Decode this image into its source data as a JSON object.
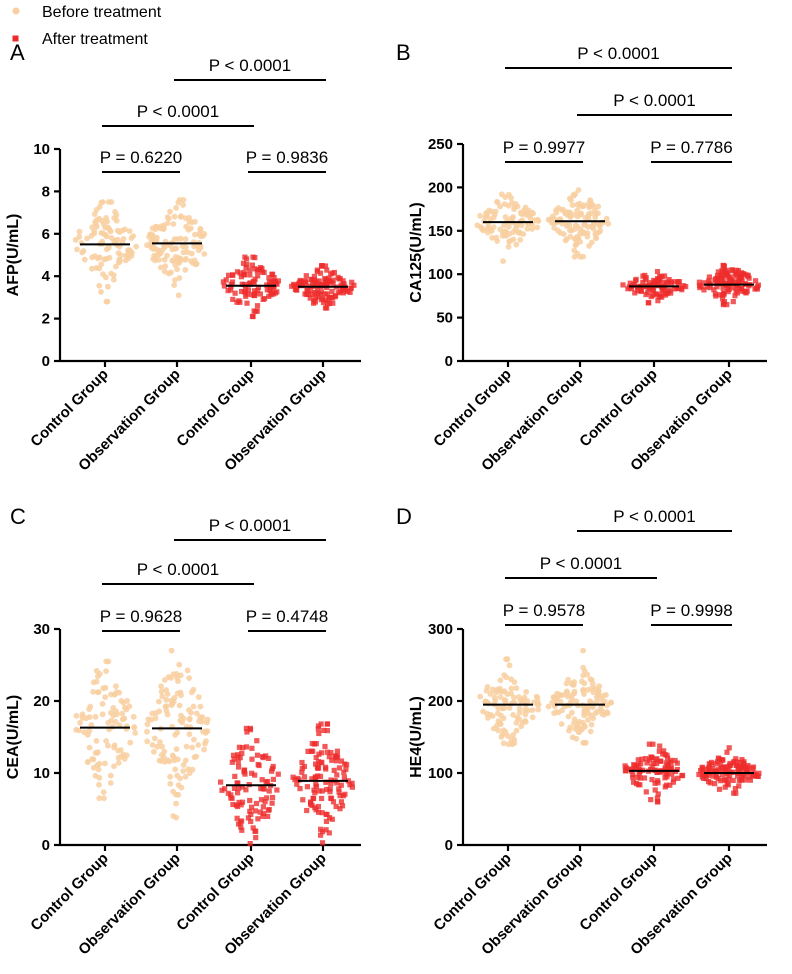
{
  "legend": {
    "items": [
      {
        "label": "Before treatment",
        "color": "#f8cfa0",
        "marker": "circle"
      },
      {
        "label": "After treatment",
        "color": "#ee2b2b",
        "marker": "square"
      }
    ]
  },
  "chart_data": [
    {
      "panel": "A",
      "type": "scatter",
      "ylabel": "AFP(U/mL)",
      "ylim": [
        0,
        10
      ],
      "yticks": [
        "0",
        "2",
        "4",
        "6",
        "8",
        "10"
      ],
      "categories": [
        "Control Group",
        "Observation Group",
        "Control Group",
        "Observation Group"
      ],
      "series": [
        {
          "name": "Before treatment - Control Group",
          "median": 5.5,
          "min": 2.8,
          "max": 7.5,
          "n": 100
        },
        {
          "name": "Before treatment - Observation Group",
          "median": 5.55,
          "min": 3.1,
          "max": 7.6,
          "n": 120
        },
        {
          "name": "After treatment - Control Group",
          "median": 3.55,
          "min": 2.1,
          "max": 4.9,
          "n": 100
        },
        {
          "name": "After treatment - Observation Group",
          "median": 3.5,
          "min": 2.5,
          "max": 4.5,
          "n": 120
        }
      ],
      "comparisons": [
        {
          "from": 0,
          "to": 1,
          "label": "P = 0.6220",
          "level": 1
        },
        {
          "from": 2,
          "to": 3,
          "label": "P = 0.9836",
          "level": 1
        },
        {
          "from": 0,
          "to": 2,
          "label": "P < 0.0001",
          "level": 2
        },
        {
          "from": 1,
          "to": 3,
          "label": "P < 0.0001",
          "level": 3
        }
      ]
    },
    {
      "panel": "B",
      "type": "scatter",
      "ylabel": "CA125(U/mL)",
      "ylim": [
        0,
        250
      ],
      "yticks": [
        "0",
        "50",
        "100",
        "150",
        "200",
        "250"
      ],
      "categories": [
        "Control Group",
        "Observation Group",
        "Control Group",
        "Observation Group"
      ],
      "series": [
        {
          "name": "Before treatment - Control Group",
          "median": 160,
          "min": 115,
          "max": 192,
          "n": 100
        },
        {
          "name": "Before treatment - Observation Group",
          "median": 161,
          "min": 120,
          "max": 197,
          "n": 120
        },
        {
          "name": "After treatment - Control Group",
          "median": 86,
          "min": 67,
          "max": 103,
          "n": 100
        },
        {
          "name": "After treatment - Observation Group",
          "median": 88,
          "min": 65,
          "max": 110,
          "n": 120
        }
      ],
      "comparisons": [
        {
          "from": 0,
          "to": 1,
          "label": "P = 0.9977",
          "level": 1
        },
        {
          "from": 2,
          "to": 3,
          "label": "P = 0.7786",
          "level": 1
        },
        {
          "from": 1,
          "to": 3,
          "label": "P < 0.0001",
          "level": 2
        },
        {
          "from": 0,
          "to": 3,
          "label": "P < 0.0001",
          "level": 3
        }
      ]
    },
    {
      "panel": "C",
      "type": "scatter",
      "ylabel": "CEA(U/mL)",
      "ylim": [
        0,
        30
      ],
      "yticks": [
        "0",
        "10",
        "20",
        "30"
      ],
      "categories": [
        "Control Group",
        "Observation Group",
        "Control Group",
        "Observation Group"
      ],
      "series": [
        {
          "name": "Before treatment - Control Group",
          "median": 16.3,
          "min": 6.5,
          "max": 25.5,
          "n": 100
        },
        {
          "name": "Before treatment - Observation Group",
          "median": 16.2,
          "min": 3.8,
          "max": 27,
          "n": 120
        },
        {
          "name": "After treatment - Control Group",
          "median": 8.3,
          "min": 0.2,
          "max": 16.2,
          "n": 100
        },
        {
          "name": "After treatment - Observation Group",
          "median": 8.9,
          "min": 0.3,
          "max": 16.8,
          "n": 120
        }
      ],
      "comparisons": [
        {
          "from": 0,
          "to": 1,
          "label": "P = 0.9628",
          "level": 1
        },
        {
          "from": 2,
          "to": 3,
          "label": "P = 0.4748",
          "level": 1
        },
        {
          "from": 0,
          "to": 2,
          "label": "P < 0.0001",
          "level": 2
        },
        {
          "from": 1,
          "to": 3,
          "label": "P < 0.0001",
          "level": 3
        }
      ]
    },
    {
      "panel": "D",
      "type": "scatter",
      "ylabel": "HE4(U/mL)",
      "ylim": [
        0,
        300
      ],
      "yticks": [
        "0",
        "100",
        "200",
        "300"
      ],
      "categories": [
        "Control Group",
        "Observation Group",
        "Control Group",
        "Observation Group"
      ],
      "series": [
        {
          "name": "Before treatment - Control Group",
          "median": 195,
          "min": 140,
          "max": 258,
          "n": 100
        },
        {
          "name": "Before treatment - Observation Group",
          "median": 195,
          "min": 142,
          "max": 270,
          "n": 120
        },
        {
          "name": "After treatment - Control Group",
          "median": 103,
          "min": 60,
          "max": 140,
          "n": 100
        },
        {
          "name": "After treatment - Observation Group",
          "median": 100,
          "min": 72,
          "max": 135,
          "n": 120
        }
      ],
      "comparisons": [
        {
          "from": 0,
          "to": 1,
          "label": "P = 0.9578",
          "level": 1
        },
        {
          "from": 2,
          "to": 3,
          "label": "P = 0.9998",
          "level": 1
        },
        {
          "from": 0,
          "to": 2,
          "label": "P < 0.0001",
          "level": 2
        },
        {
          "from": 1,
          "to": 3,
          "label": "P < 0.0001",
          "level": 3
        }
      ]
    }
  ]
}
